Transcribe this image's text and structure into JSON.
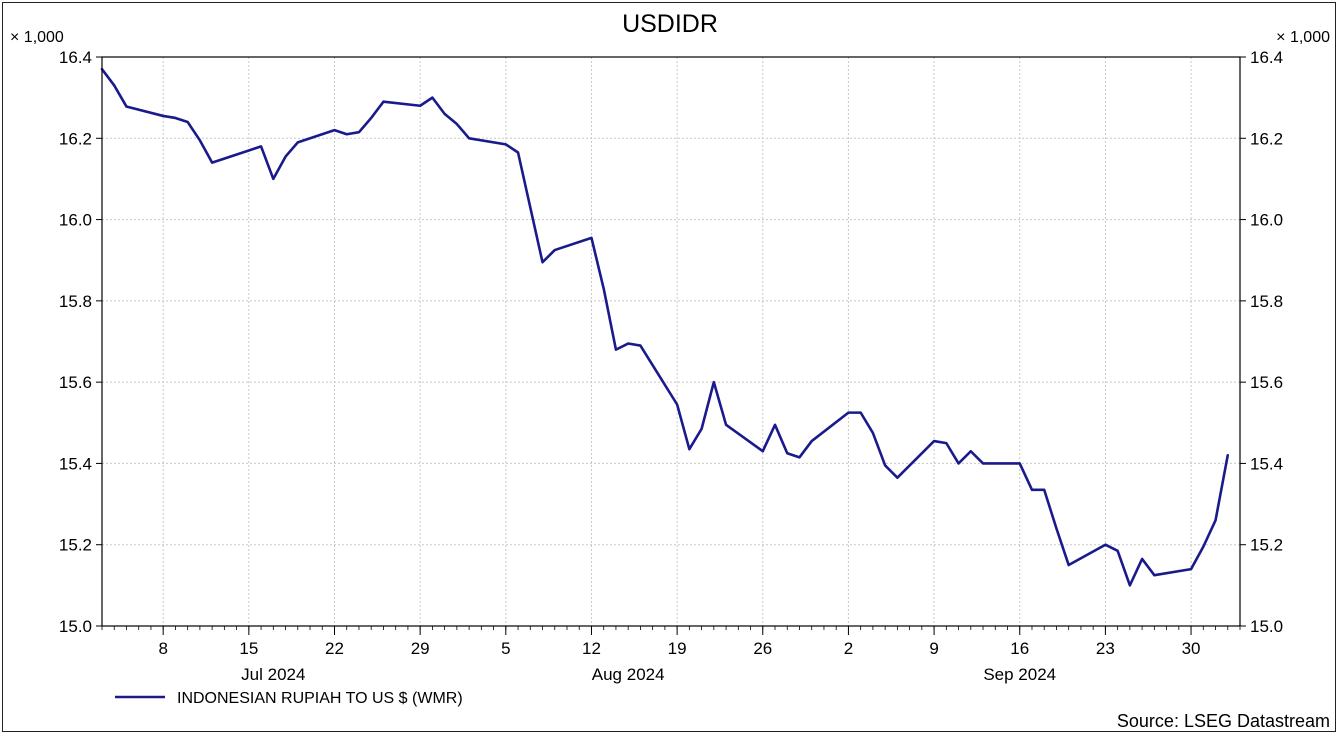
{
  "chart_data": {
    "type": "line",
    "title": "USDIDR",
    "unit_label": "× 1,000",
    "source": "Source: LSEG Datastream",
    "ylim": [
      15.0,
      16.4
    ],
    "yticks": [
      "15.0",
      "15.2",
      "15.4",
      "15.6",
      "15.8",
      "16.0",
      "16.2",
      "16.4"
    ],
    "grid": true,
    "legend_position": "bottom-left",
    "xlim": [
      "2024-07-03",
      "2024-10-04"
    ],
    "x_ticks": [
      {
        "date": "2024-07-08",
        "label": "8"
      },
      {
        "date": "2024-07-15",
        "label": "15"
      },
      {
        "date": "2024-07-22",
        "label": "22"
      },
      {
        "date": "2024-07-29",
        "label": "29"
      },
      {
        "date": "2024-08-05",
        "label": "5"
      },
      {
        "date": "2024-08-12",
        "label": "12"
      },
      {
        "date": "2024-08-19",
        "label": "19"
      },
      {
        "date": "2024-08-26",
        "label": "26"
      },
      {
        "date": "2024-09-02",
        "label": "2"
      },
      {
        "date": "2024-09-09",
        "label": "9"
      },
      {
        "date": "2024-09-16",
        "label": "16"
      },
      {
        "date": "2024-09-23",
        "label": "23"
      },
      {
        "date": "2024-09-30",
        "label": "30"
      }
    ],
    "x_month_labels": [
      {
        "date": "2024-07-17",
        "label": "Jul 2024"
      },
      {
        "date": "2024-08-15",
        "label": "Aug 2024"
      },
      {
        "date": "2024-09-16",
        "label": "Sep 2024"
      }
    ],
    "series": [
      {
        "name": "INDONESIAN RUPIAH TO US $ (WMR)",
        "color": "#1a1a8c",
        "points": [
          [
            "2024-07-03",
            16.37
          ],
          [
            "2024-07-04",
            16.33
          ],
          [
            "2024-07-05",
            16.278
          ],
          [
            "2024-07-08",
            16.255
          ],
          [
            "2024-07-09",
            16.25
          ],
          [
            "2024-07-10",
            16.24
          ],
          [
            "2024-07-11",
            16.195
          ],
          [
            "2024-07-12",
            16.14
          ],
          [
            "2024-07-15",
            16.17
          ],
          [
            "2024-07-16",
            16.18
          ],
          [
            "2024-07-17",
            16.1
          ],
          [
            "2024-07-18",
            16.155
          ],
          [
            "2024-07-19",
            16.19
          ],
          [
            "2024-07-22",
            16.22
          ],
          [
            "2024-07-23",
            16.21
          ],
          [
            "2024-07-24",
            16.215
          ],
          [
            "2024-07-25",
            16.25
          ],
          [
            "2024-07-26",
            16.29
          ],
          [
            "2024-07-29",
            16.28
          ],
          [
            "2024-07-30",
            16.3
          ],
          [
            "2024-07-31",
            16.26
          ],
          [
            "2024-08-01",
            16.235
          ],
          [
            "2024-08-02",
            16.2
          ],
          [
            "2024-08-05",
            16.185
          ],
          [
            "2024-08-06",
            16.165
          ],
          [
            "2024-08-07",
            16.03
          ],
          [
            "2024-08-08",
            15.895
          ],
          [
            "2024-08-09",
            15.925
          ],
          [
            "2024-08-12",
            15.955
          ],
          [
            "2024-08-13",
            15.83
          ],
          [
            "2024-08-14",
            15.68
          ],
          [
            "2024-08-15",
            15.695
          ],
          [
            "2024-08-16",
            15.69
          ],
          [
            "2024-08-19",
            15.545
          ],
          [
            "2024-08-20",
            15.435
          ],
          [
            "2024-08-21",
            15.485
          ],
          [
            "2024-08-22",
            15.6
          ],
          [
            "2024-08-23",
            15.495
          ],
          [
            "2024-08-26",
            15.43
          ],
          [
            "2024-08-27",
            15.495
          ],
          [
            "2024-08-28",
            15.425
          ],
          [
            "2024-08-29",
            15.415
          ],
          [
            "2024-08-30",
            15.455
          ],
          [
            "2024-09-02",
            15.525
          ],
          [
            "2024-09-03",
            15.525
          ],
          [
            "2024-09-04",
            15.475
          ],
          [
            "2024-09-05",
            15.395
          ],
          [
            "2024-09-06",
            15.365
          ],
          [
            "2024-09-09",
            15.455
          ],
          [
            "2024-09-10",
            15.45
          ],
          [
            "2024-09-11",
            15.4
          ],
          [
            "2024-09-12",
            15.43
          ],
          [
            "2024-09-13",
            15.4
          ],
          [
            "2024-09-16",
            15.4
          ],
          [
            "2024-09-17",
            15.335
          ],
          [
            "2024-09-18",
            15.335
          ],
          [
            "2024-09-19",
            15.24
          ],
          [
            "2024-09-20",
            15.15
          ],
          [
            "2024-09-23",
            15.2
          ],
          [
            "2024-09-24",
            15.185
          ],
          [
            "2024-09-25",
            15.1
          ],
          [
            "2024-09-26",
            15.165
          ],
          [
            "2024-09-27",
            15.125
          ],
          [
            "2024-09-30",
            15.14
          ],
          [
            "2024-10-01",
            15.195
          ],
          [
            "2024-10-02",
            15.26
          ],
          [
            "2024-10-03",
            15.42
          ]
        ]
      }
    ]
  }
}
